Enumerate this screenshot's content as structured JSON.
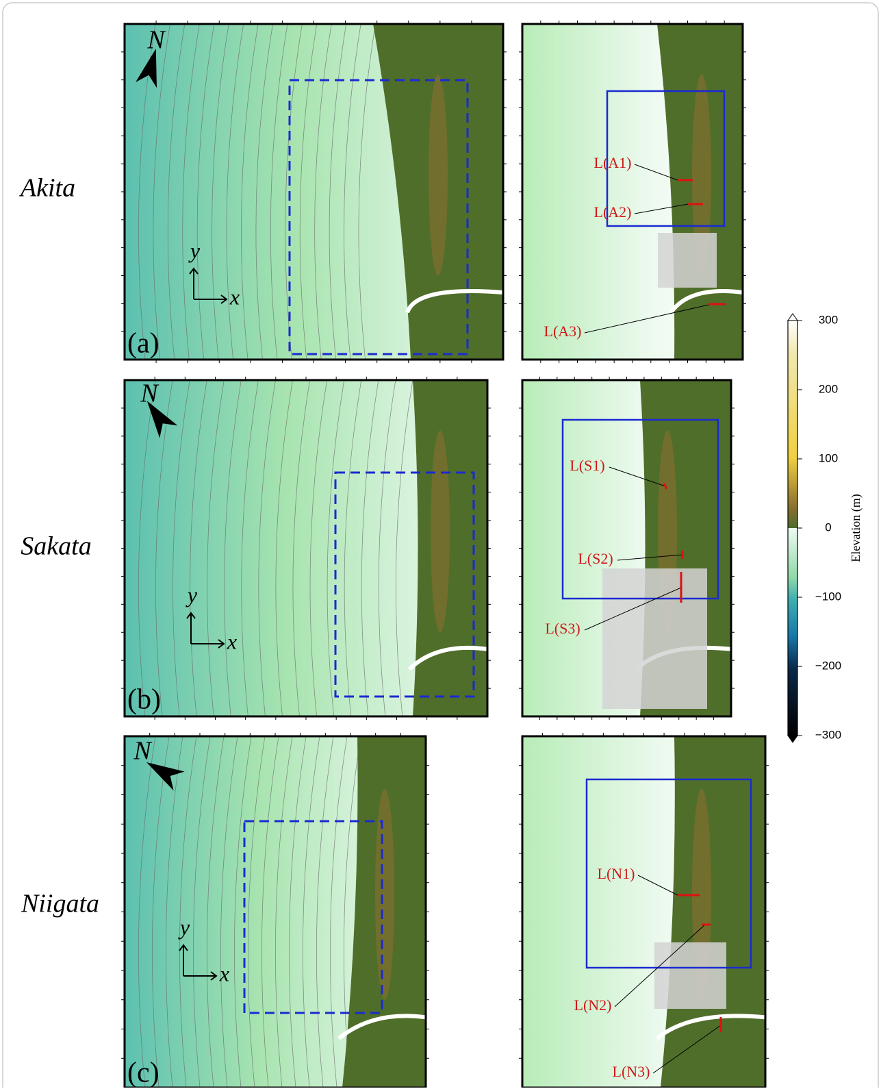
{
  "panels": [
    {
      "site": "Akita",
      "label": "(a)",
      "north": "N",
      "axis_y": "y",
      "axis_x": "x",
      "lines": [
        "L(A1)",
        "L(A2)",
        "L(A3)"
      ]
    },
    {
      "site": "Sakata",
      "label": "(b)",
      "north": "N",
      "axis_y": "y",
      "axis_x": "x",
      "lines": [
        "L(S1)",
        "L(S2)",
        "L(S3)"
      ]
    },
    {
      "site": "Niigata",
      "label": "(c)",
      "north": "N",
      "axis_y": "y",
      "axis_x": "x",
      "lines": [
        "L(N1)",
        "L(N2)",
        "L(N3)"
      ]
    }
  ],
  "colorbar": {
    "label": "Elevation (m)",
    "lim": [
      -300,
      300
    ],
    "ticks": [
      300,
      200,
      100,
      0,
      {
        "value": -100,
        "label": "−100"
      },
      {
        "value": -200,
        "label": "−200"
      },
      {
        "value": -300,
        "label": "−300"
      }
    ]
  }
}
